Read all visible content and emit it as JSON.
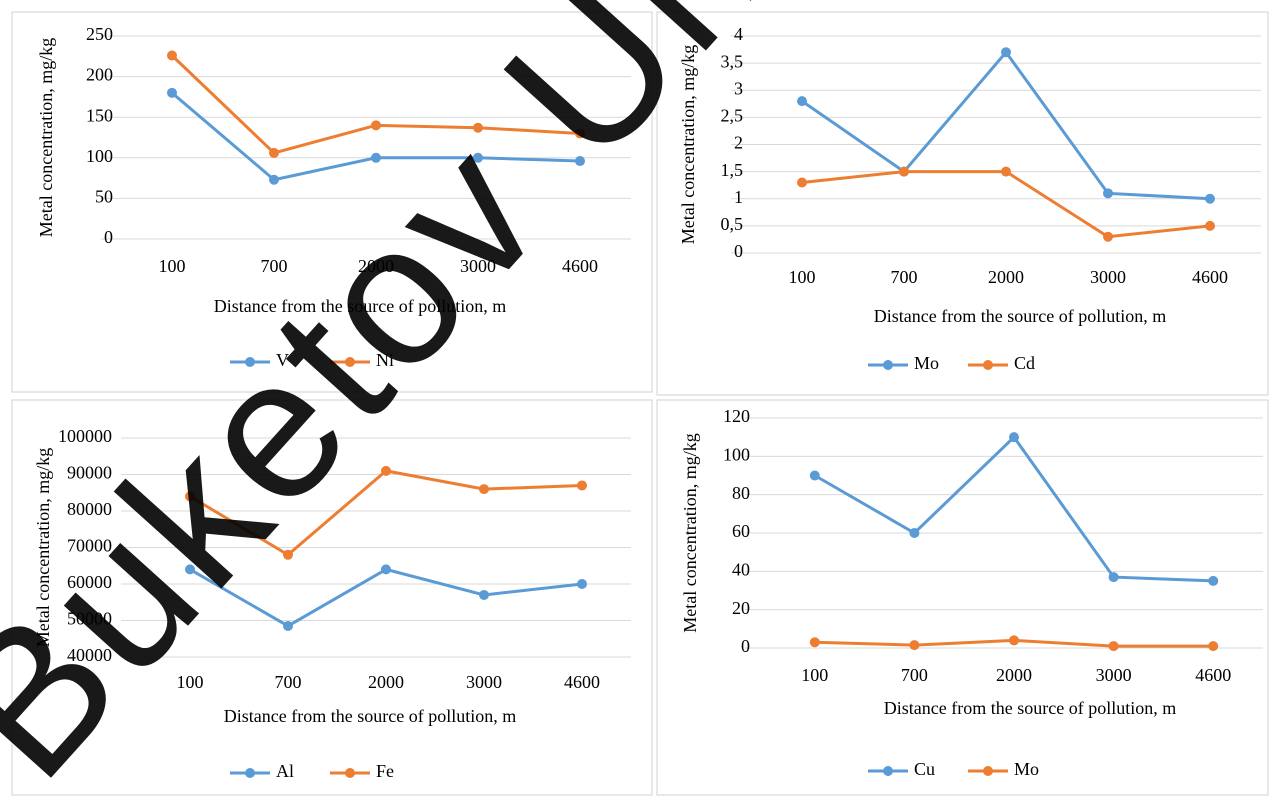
{
  "chart_data": [
    {
      "type": "line",
      "xlabel": "Distance from the source of pollution, m",
      "ylabel": "Metal concentration, mg/kg",
      "categories": [
        "100",
        "700",
        "2000",
        "3000",
        "4600"
      ],
      "series": [
        {
          "name": "V",
          "color": "#5b9bd5",
          "values": [
            180,
            73,
            100,
            100,
            96
          ]
        },
        {
          "name": "Ni",
          "color": "#ed7d31",
          "values": [
            226,
            106,
            140,
            137,
            130
          ]
        }
      ],
      "ylim": [
        0,
        250
      ],
      "yticks": [
        0,
        50,
        100,
        150,
        200,
        250
      ],
      "grid": true,
      "legend": "bottom"
    },
    {
      "type": "line",
      "xlabel": "Distance from the source of pollution, m",
      "ylabel": "Metal concentration, mg/kg",
      "categories": [
        "100",
        "700",
        "2000",
        "3000",
        "4600"
      ],
      "series": [
        {
          "name": "Mo",
          "color": "#5b9bd5",
          "values": [
            2.8,
            1.5,
            3.7,
            1.1,
            1.0
          ]
        },
        {
          "name": "Cd",
          "color": "#ed7d31",
          "values": [
            1.3,
            1.5,
            1.5,
            0.3,
            0.5
          ]
        }
      ],
      "ylim": [
        0,
        4
      ],
      "yticks": [
        0,
        {
          "value": 0.5,
          "label": "0,5"
        },
        1,
        {
          "value": 1.5,
          "label": "1,5"
        },
        2,
        {
          "value": 2.5,
          "label": "2,5"
        },
        3,
        {
          "value": 3.5,
          "label": "3,5"
        },
        4
      ],
      "grid": true,
      "legend": "bottom"
    },
    {
      "type": "line",
      "xlabel": "Distance from the source of pollution, m",
      "ylabel": "Metal concentration, mg/kg",
      "categories": [
        "100",
        "700",
        "2000",
        "3000",
        "4600"
      ],
      "series": [
        {
          "name": "Al",
          "color": "#5b9bd5",
          "values": [
            64000,
            48500,
            64000,
            57000,
            60000
          ]
        },
        {
          "name": "Fe",
          "color": "#ed7d31",
          "values": [
            84000,
            68000,
            91000,
            86000,
            87000
          ]
        }
      ],
      "ylim": [
        40000,
        100000
      ],
      "yticks": [
        40000,
        50000,
        60000,
        70000,
        80000,
        90000,
        100000
      ],
      "grid": true,
      "legend": "bottom"
    },
    {
      "type": "line",
      "xlabel": "Distance from the source of pollution, m",
      "ylabel": "Metal concentration, mg/kg",
      "categories": [
        "100",
        "700",
        "2000",
        "3000",
        "4600"
      ],
      "series": [
        {
          "name": "Cu",
          "color": "#5b9bd5",
          "values": [
            90,
            60,
            110,
            37,
            35
          ]
        },
        {
          "name": "Mo",
          "color": "#ed7d31",
          "values": [
            3,
            1.5,
            4,
            1,
            1
          ]
        }
      ],
      "ylim": [
        0,
        120
      ],
      "yticks": [
        0,
        20,
        40,
        60,
        80,
        100,
        120
      ],
      "grid": true,
      "legend": "bottom"
    }
  ],
  "watermark": "Buketov Univ"
}
